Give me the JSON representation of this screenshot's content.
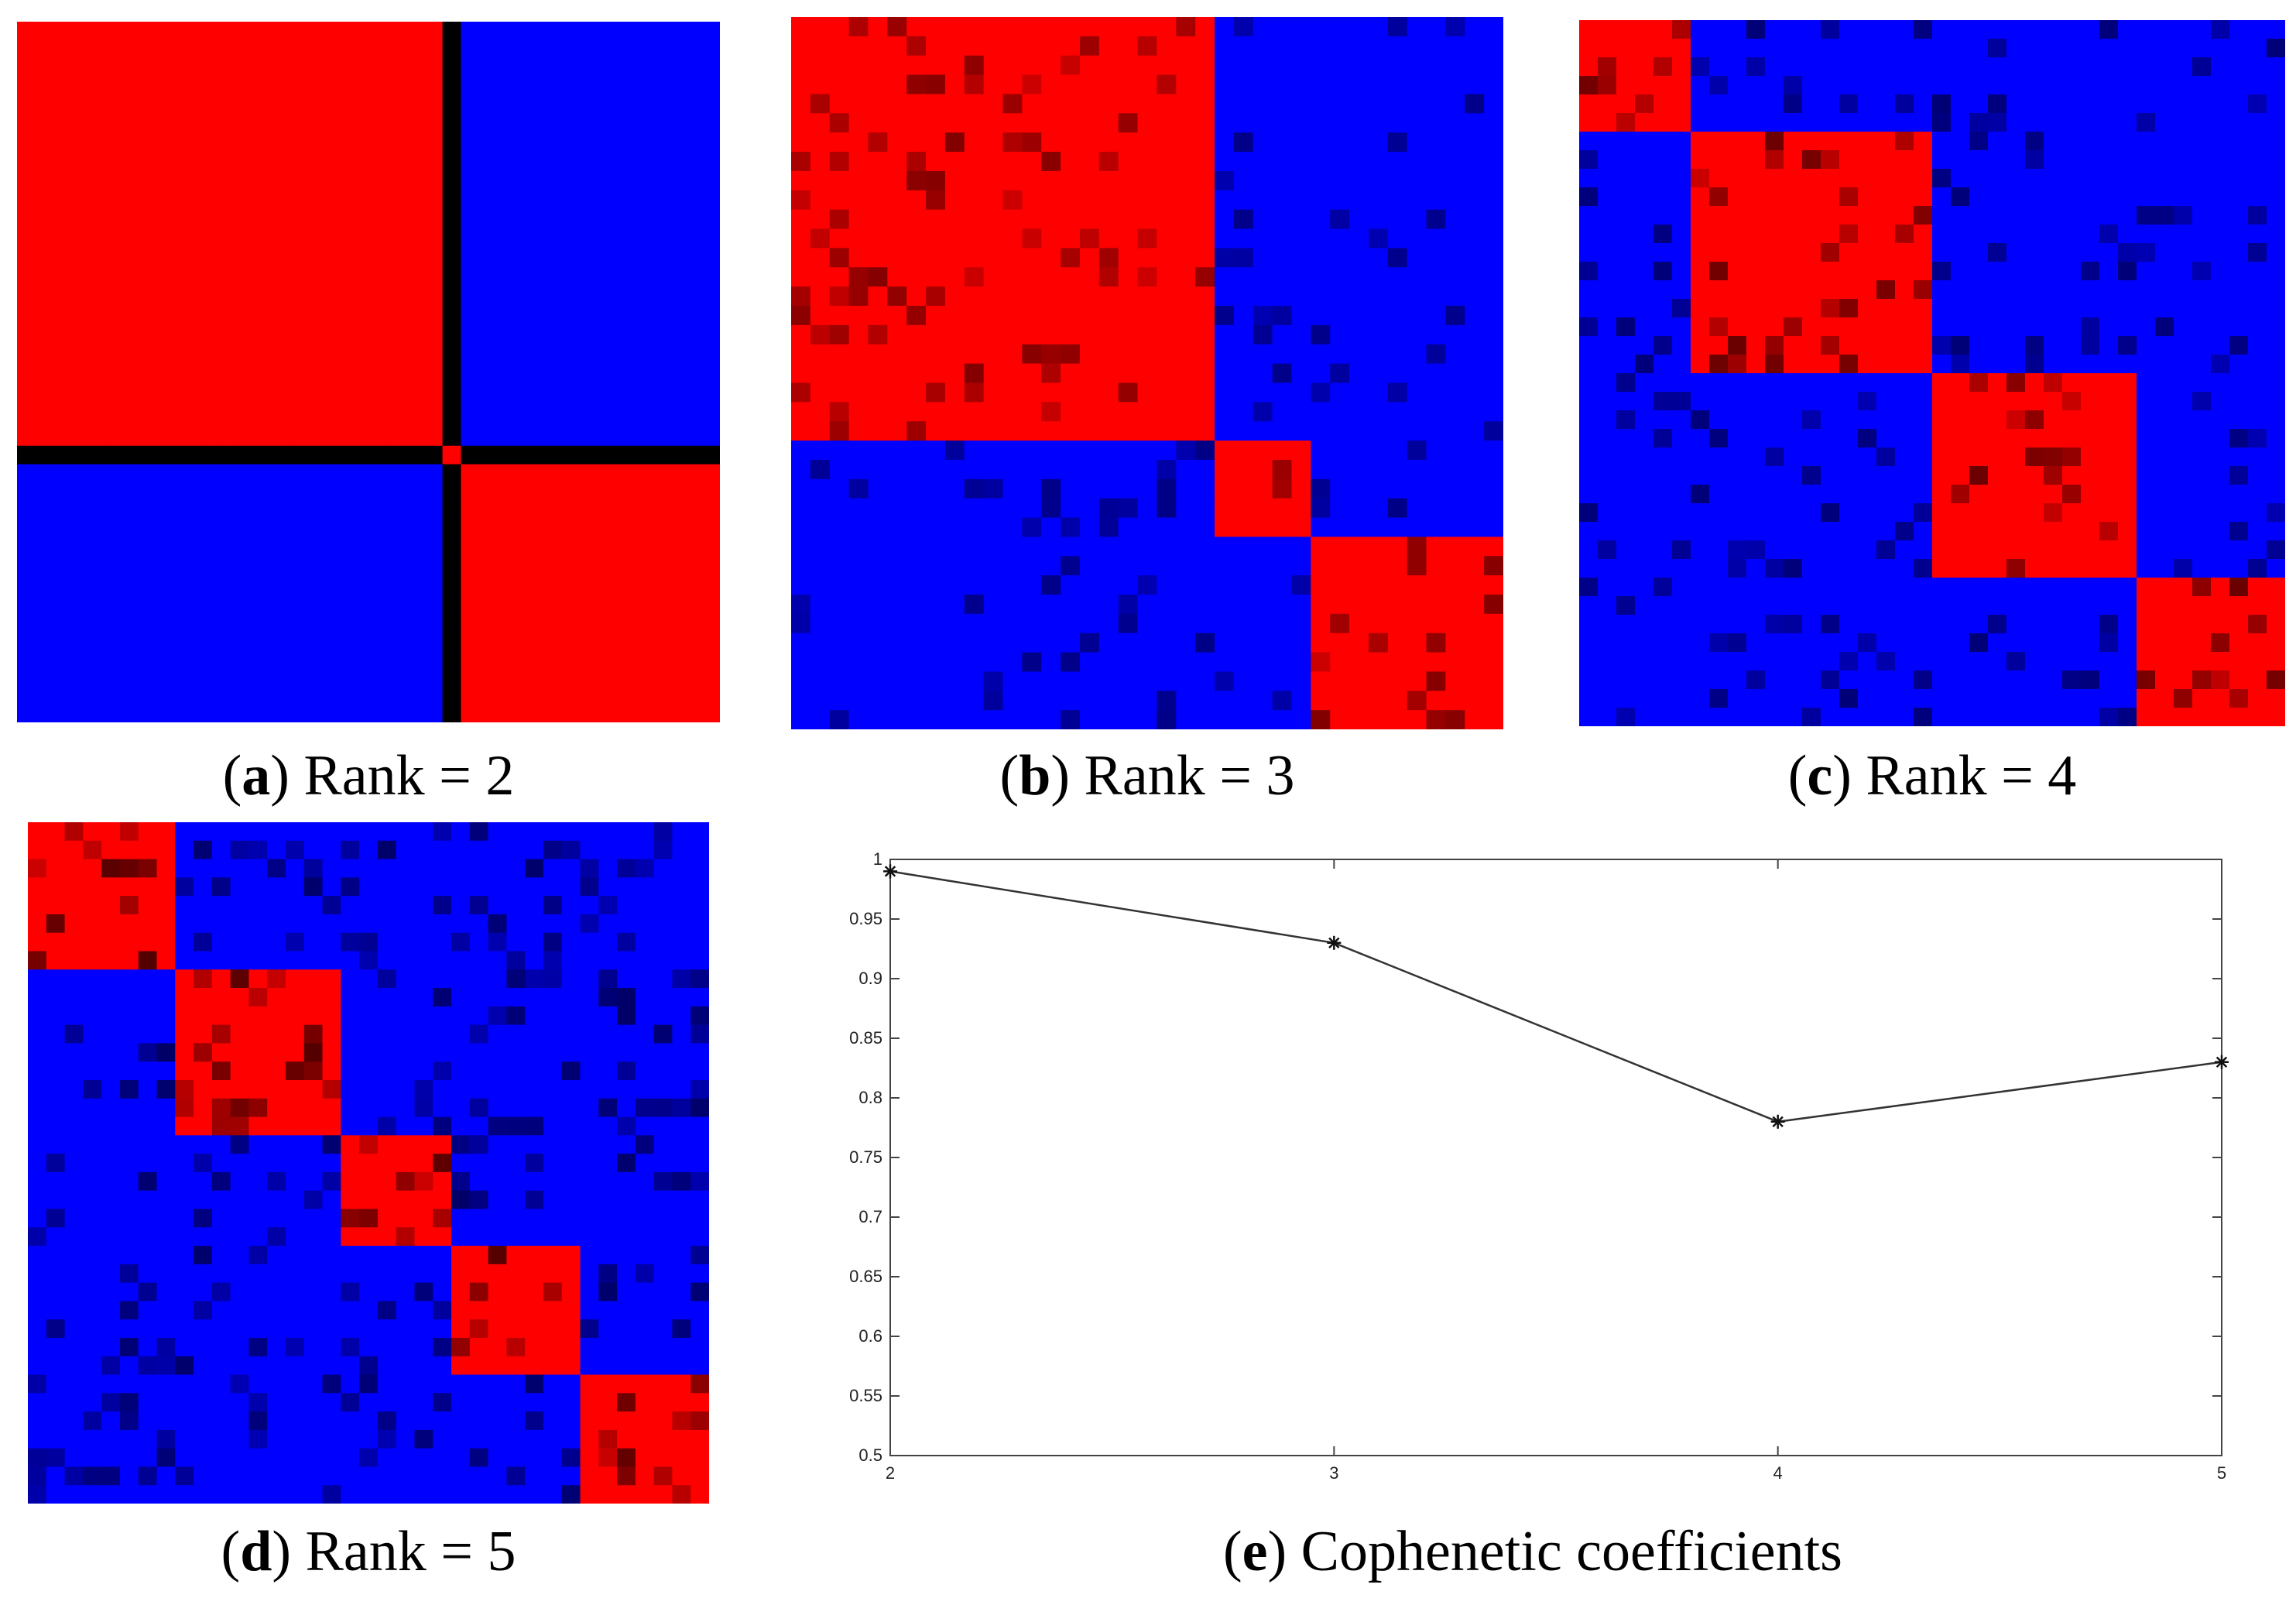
{
  "colors": {
    "red": "#ff0000",
    "blue": "#0000ff",
    "black": "#000000",
    "darkred": "#b00000",
    "darkblue": "#000088"
  },
  "panels": [
    {
      "letter": "a",
      "rest": ") Rank = 2",
      "rank": 2,
      "block_sizes": [
        23,
        15
      ]
    },
    {
      "letter": "b",
      "rest": ") Rank = 3",
      "rank": 3,
      "block_sizes": [
        22,
        5,
        10
      ]
    },
    {
      "letter": "c",
      "rest": ") Rank = 4",
      "rank": 4,
      "block_sizes": [
        6,
        13,
        11,
        8
      ]
    },
    {
      "letter": "d",
      "rest": ") Rank = 5",
      "rank": 5,
      "block_sizes": [
        8,
        9,
        6,
        7,
        7
      ]
    },
    {
      "letter": "e",
      "rest": ") Cophenetic coefficients"
    }
  ],
  "chart_data": {
    "type": "line",
    "x": [
      2,
      3,
      4,
      5
    ],
    "values": [
      0.99,
      0.93,
      0.78,
      0.83
    ],
    "marker": "asterisk",
    "xlim": [
      2,
      5
    ],
    "ylim": [
      0.5,
      1
    ],
    "xticks": [
      "2",
      "3",
      "4",
      "5"
    ],
    "yticks": [
      "0.5",
      "0.55",
      "0.6",
      "0.65",
      "0.7",
      "0.75",
      "0.8",
      "0.85",
      "0.9",
      "0.95",
      "1"
    ],
    "grid": false,
    "line_color": "#333333"
  }
}
